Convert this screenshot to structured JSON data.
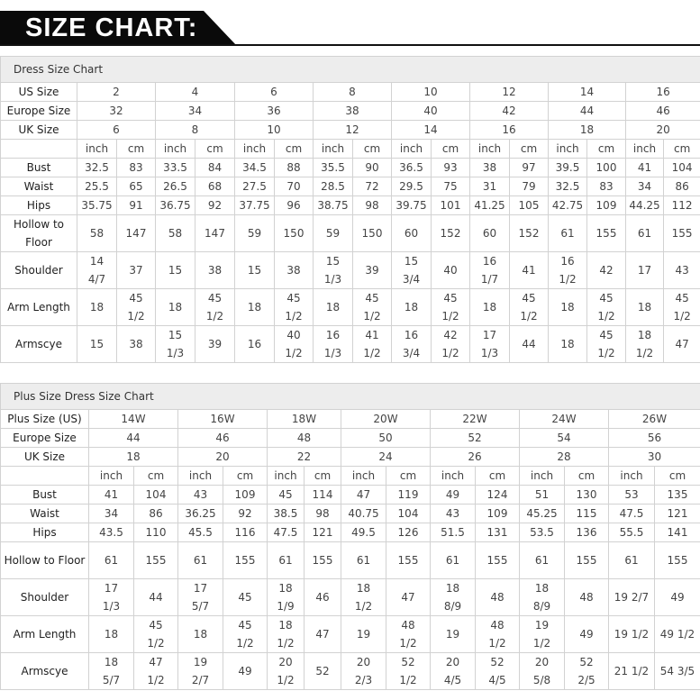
{
  "header": {
    "title": "SIZE CHART:"
  },
  "tables": [
    {
      "title": "Dress Size Chart",
      "size_rows": [
        {
          "label": "US Size",
          "values": [
            "2",
            "4",
            "6",
            "8",
            "10",
            "12",
            "14",
            "16"
          ]
        },
        {
          "label": "Europe Size",
          "values": [
            "32",
            "34",
            "36",
            "38",
            "40",
            "42",
            "44",
            "46"
          ]
        },
        {
          "label": "UK Size",
          "values": [
            "6",
            "8",
            "10",
            "12",
            "14",
            "16",
            "18",
            "20"
          ]
        }
      ],
      "units": [
        "inch",
        "cm"
      ],
      "measure_rows": [
        {
          "label": "Bust",
          "values": [
            "32.5",
            "83",
            "33.5",
            "84",
            "34.5",
            "88",
            "35.5",
            "90",
            "36.5",
            "93",
            "38",
            "97",
            "39.5",
            "100",
            "41",
            "104"
          ]
        },
        {
          "label": "Waist",
          "values": [
            "25.5",
            "65",
            "26.5",
            "68",
            "27.5",
            "70",
            "28.5",
            "72",
            "29.5",
            "75",
            "31",
            "79",
            "32.5",
            "83",
            "34",
            "86"
          ]
        },
        {
          "label": "Hips",
          "values": [
            "35.75",
            "91",
            "36.75",
            "92",
            "37.75",
            "96",
            "38.75",
            "98",
            "39.75",
            "101",
            "41.25",
            "105",
            "42.75",
            "109",
            "44.25",
            "112"
          ]
        },
        {
          "label": "Hollow to Floor",
          "values": [
            "58",
            "147",
            "58",
            "147",
            "59",
            "150",
            "59",
            "150",
            "60",
            "152",
            "60",
            "152",
            "61",
            "155",
            "61",
            "155"
          ]
        },
        {
          "label": "Shoulder",
          "values": [
            "14 4/7",
            "37",
            "15",
            "38",
            "15",
            "38",
            "15 1/3",
            "39",
            "15 3/4",
            "40",
            "16 1/7",
            "41",
            "16 1/2",
            "42",
            "17",
            "43"
          ]
        },
        {
          "label": "Arm Length",
          "values": [
            "18",
            "45 1/2",
            "18",
            "45 1/2",
            "18",
            "45 1/2",
            "18",
            "45 1/2",
            "18",
            "45 1/2",
            "18",
            "45 1/2",
            "18",
            "45 1/2",
            "18",
            "45 1/2"
          ]
        },
        {
          "label": "Armscye",
          "values": [
            "15",
            "38",
            "15 1/3",
            "39",
            "16",
            "40 1/2",
            "16 1/3",
            "41 1/2",
            "16 3/4",
            "42 1/2",
            "17 1/3",
            "44",
            "18",
            "45 1/2",
            "18 1/2",
            "47"
          ]
        }
      ]
    },
    {
      "title": "Plus Size Dress Size Chart",
      "size_rows": [
        {
          "label": "Plus Size (US)",
          "values": [
            "14W",
            "16W",
            "18W",
            "20W",
            "22W",
            "24W",
            "26W"
          ]
        },
        {
          "label": "Europe Size",
          "values": [
            "44",
            "46",
            "48",
            "50",
            "52",
            "54",
            "56"
          ]
        },
        {
          "label": "UK Size",
          "values": [
            "18",
            "20",
            "22",
            "24",
            "26",
            "28",
            "30"
          ]
        }
      ],
      "units": [
        "inch",
        "cm"
      ],
      "measure_rows": [
        {
          "label": "Bust",
          "values": [
            "41",
            "104",
            "43",
            "109",
            "45",
            "114",
            "47",
            "119",
            "49",
            "124",
            "51",
            "130",
            "53",
            "135"
          ]
        },
        {
          "label": "Waist",
          "values": [
            "34",
            "86",
            "36.25",
            "92",
            "38.5",
            "98",
            "40.75",
            "104",
            "43",
            "109",
            "45.25",
            "115",
            "47.5",
            "121"
          ]
        },
        {
          "label": "Hips",
          "values": [
            "43.5",
            "110",
            "45.5",
            "116",
            "47.5",
            "121",
            "49.5",
            "126",
            "51.5",
            "131",
            "53.5",
            "136",
            "55.5",
            "141"
          ]
        },
        {
          "label": "Hollow to Floor",
          "values": [
            "61",
            "155",
            "61",
            "155",
            "61",
            "155",
            "61",
            "155",
            "61",
            "155",
            "61",
            "155",
            "61",
            "155"
          ]
        },
        {
          "label": "Shoulder",
          "values": [
            "17 1/3",
            "44",
            "17 5/7",
            "45",
            "18 1/9",
            "46",
            "18 1/2",
            "47",
            "18 8/9",
            "48",
            "18 8/9",
            "48",
            "19 2/7",
            "49"
          ]
        },
        {
          "label": "Arm Length",
          "values": [
            "18",
            "45 1/2",
            "18",
            "45 1/2",
            "18 1/2",
            "47",
            "19",
            "48 1/2",
            "19",
            "48 1/2",
            "19 1/2",
            "49",
            "19 1/2",
            "49 1/2"
          ]
        },
        {
          "label": "Armscye",
          "values": [
            "18 5/7",
            "47 1/2",
            "19 2/7",
            "49",
            "20 1/2",
            "52",
            "20 2/3",
            "52 1/2",
            "20 4/5",
            "52 4/5",
            "20 5/8",
            "52 2/5",
            "21 1/2",
            "54 3/5"
          ]
        }
      ]
    }
  ]
}
